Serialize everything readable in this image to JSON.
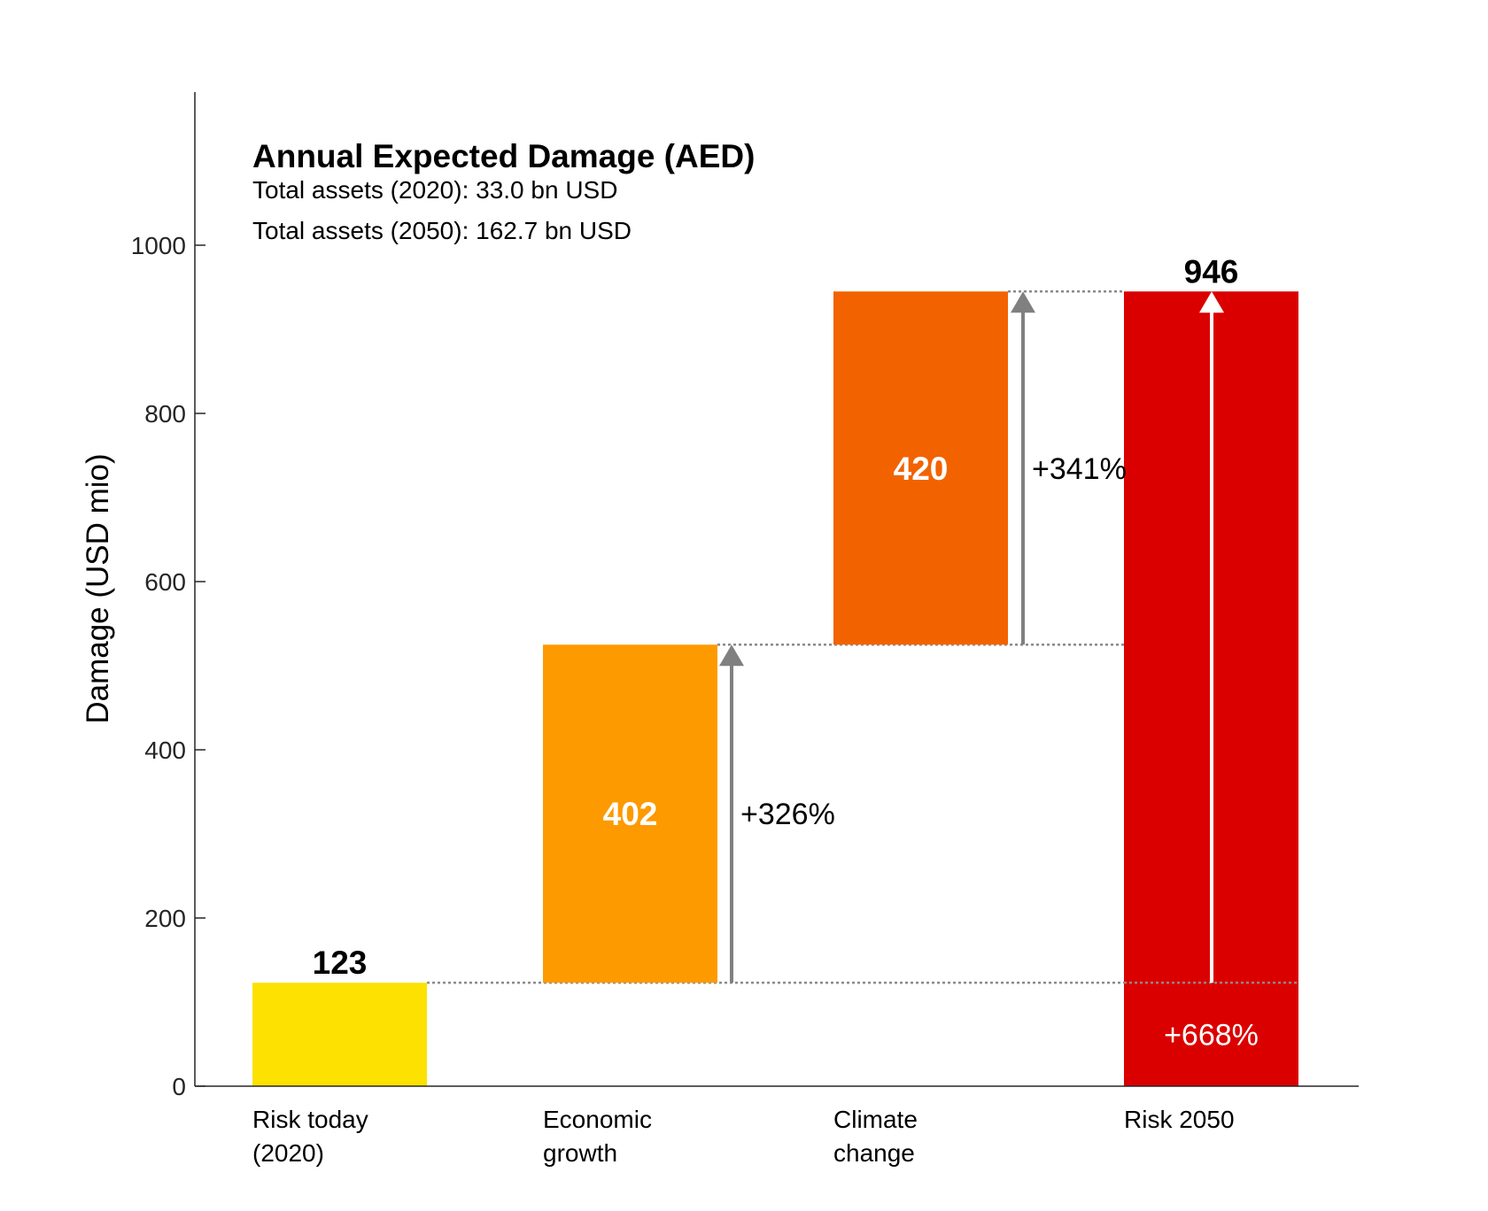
{
  "chart_data": {
    "type": "bar",
    "subtype": "waterfall",
    "title": "Annual Expected Damage (AED)",
    "subtitle_lines": [
      "Total assets (2020): 33.0 bn USD",
      "Total assets (2050): 162.7 bn USD"
    ],
    "xlabel": "",
    "ylabel": "Damage (USD mio)",
    "ylim": [
      0,
      1180
    ],
    "yticks": [
      0,
      200,
      400,
      600,
      800,
      1000
    ],
    "grid": false,
    "legend": "none",
    "categories": [
      {
        "lines": [
          "Risk today",
          "(2020)"
        ]
      },
      {
        "lines": [
          "Economic",
          "growth"
        ]
      },
      {
        "lines": [
          "Climate",
          "change"
        ]
      },
      {
        "lines": [
          "Risk 2050"
        ]
      }
    ],
    "bars": [
      {
        "base": 0,
        "top": 123,
        "label": "123",
        "color": "#fde100",
        "label_color": "#000000",
        "label_position": "above"
      },
      {
        "base": 123,
        "top": 525,
        "label": "402",
        "color": "#fd9a00",
        "label_color": "#ffffff",
        "label_position": "center"
      },
      {
        "base": 525,
        "top": 945,
        "label": "420",
        "color": "#f26300",
        "label_color": "#ffffff",
        "label_position": "center"
      },
      {
        "base": 0,
        "top": 945,
        "label": "946",
        "color": "#db0000",
        "label_color": "#000000",
        "label_position": "above"
      }
    ],
    "changes": [
      {
        "from": 123,
        "to": 525,
        "label": "+326%",
        "color": "#808080",
        "label_color": "#000000"
      },
      {
        "from": 525,
        "to": 945,
        "label": "+341%",
        "color": "#808080",
        "label_color": "#000000"
      },
      {
        "from": 123,
        "to": 945,
        "label": "+668%",
        "color": "#ffffff",
        "label_color": "#ffffff"
      }
    ],
    "connector_levels": [
      123,
      525,
      945
    ]
  }
}
